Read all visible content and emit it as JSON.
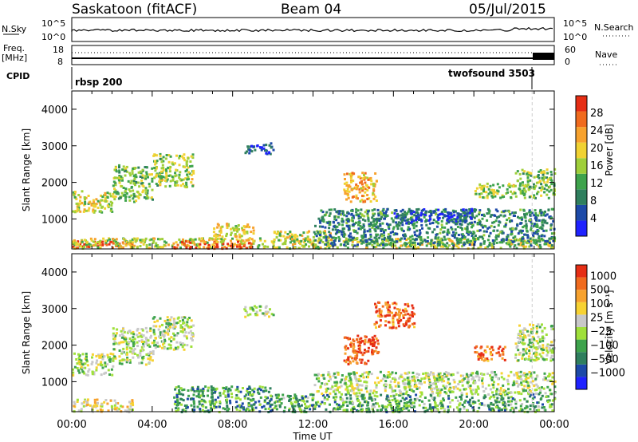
{
  "header": {
    "station": "Saskatoon (fitACF)",
    "beam": "Beam 04",
    "date": "05/Jul/2015"
  },
  "top_panels": {
    "nsky_label": "N.Sky",
    "nsky_ticks": [
      "10^5",
      "10^0"
    ],
    "nsearch_label": "N.Search",
    "freq_label_line1": "Freq.",
    "freq_label_line2": "[MHz]",
    "freq_ticks": [
      "18",
      "8"
    ],
    "nave_label": "Nave",
    "nave_ticks": [
      "60",
      "0"
    ],
    "cpid_label": "CPID",
    "cpid_programs": [
      {
        "name": "rbsp 200",
        "start_hour": 0,
        "end_hour": 22.8
      },
      {
        "name": "twofsound 3503",
        "start_hour": 22.8,
        "end_hour": 24
      }
    ]
  },
  "chart_data": [
    {
      "type": "heatmap",
      "panel": "power",
      "ylabel": "Slant Range [km]",
      "xlabel": "Time UT",
      "xlim_hours": [
        0,
        24
      ],
      "ylim_km": [
        180,
        4500
      ],
      "x_ticks": [
        "00:00",
        "04:00",
        "08:00",
        "12:00",
        "16:00",
        "20:00",
        "00:00"
      ],
      "y_ticks": [
        "1000",
        "2000",
        "3000",
        "4000"
      ],
      "colorbar": {
        "label": "Power [dB]",
        "ticks": [
          "4",
          "8",
          "12",
          "16",
          "20",
          "24",
          "28"
        ],
        "colors": [
          "#1f22ff",
          "#1d4aa8",
          "#2f7f5e",
          "#3ea34c",
          "#9fcf3a",
          "#f0d232",
          "#f7a22e",
          "#f06b1e",
          "#e62e15"
        ]
      },
      "echo_regions": [
        {
          "t0": 0,
          "t1": 3,
          "r0": 220,
          "r1": 420,
          "level": 0.95
        },
        {
          "t0": 0,
          "t1": 24,
          "r0": 220,
          "r1": 500,
          "level": 0.55
        },
        {
          "t0": 5,
          "t1": 9,
          "r0": 220,
          "r1": 420,
          "level": 0.9
        },
        {
          "t0": 0,
          "t1": 2,
          "r0": 1200,
          "r1": 1800,
          "level": 0.55
        },
        {
          "t0": 2,
          "t1": 4,
          "r0": 1500,
          "r1": 2500,
          "level": 0.45
        },
        {
          "t0": 4,
          "t1": 6,
          "r0": 1900,
          "r1": 2800,
          "level": 0.5
        },
        {
          "t0": 7,
          "t1": 9,
          "r0": 400,
          "r1": 900,
          "level": 0.6
        },
        {
          "t0": 8.5,
          "t1": 10,
          "r0": 2800,
          "r1": 3100,
          "level": 0.15
        },
        {
          "t0": 10,
          "t1": 13,
          "r0": 400,
          "r1": 700,
          "level": 0.55
        },
        {
          "t0": 13.5,
          "t1": 15.2,
          "r0": 1500,
          "r1": 2300,
          "level": 0.7
        },
        {
          "t0": 12,
          "t1": 24,
          "r0": 300,
          "r1": 1300,
          "level": 0.3
        },
        {
          "t0": 16,
          "t1": 20,
          "r0": 900,
          "r1": 1300,
          "level": 0.15
        },
        {
          "t0": 20,
          "t1": 22,
          "r0": 1600,
          "r1": 2000,
          "level": 0.5
        },
        {
          "t0": 22,
          "t1": 24,
          "r0": 1600,
          "r1": 2400,
          "level": 0.45
        }
      ]
    },
    {
      "type": "heatmap",
      "panel": "velocity",
      "ylabel": "Slant Range [km]",
      "xlabel": "Time UT",
      "xlim_hours": [
        0,
        24
      ],
      "ylim_km": [
        180,
        4500
      ],
      "x_ticks": [
        "00:00",
        "04:00",
        "08:00",
        "12:00",
        "16:00",
        "20:00",
        "00:00"
      ],
      "y_ticks": [
        "1000",
        "2000",
        "3000",
        "4000"
      ],
      "colorbar": {
        "label": "Velocity [m s⁻¹]",
        "ticks": [
          "1000",
          "500",
          "100",
          "25",
          "−25",
          "−100",
          "−500",
          "−1000"
        ],
        "colors": [
          "#1f22ff",
          "#1d4aa8",
          "#2f7f5e",
          "#3ea34c",
          "#9fe03a",
          "#c8c8c8",
          "#f7d232",
          "#f7a22e",
          "#f06b1e",
          "#e62e15"
        ]
      },
      "echo_regions": [
        {
          "t0": 0,
          "t1": 3,
          "r0": 200,
          "r1": 550,
          "level": 0.6
        },
        {
          "t0": 0,
          "t1": 2,
          "r0": 1200,
          "r1": 1800,
          "level": 0.5
        },
        {
          "t0": 2,
          "t1": 4,
          "r0": 1500,
          "r1": 2500,
          "level": 0.5
        },
        {
          "t0": 4,
          "t1": 6,
          "r0": 1900,
          "r1": 2800,
          "level": 0.5
        },
        {
          "t0": 5,
          "t1": 10,
          "r0": 200,
          "r1": 900,
          "level": 0.3
        },
        {
          "t0": 8.5,
          "t1": 10,
          "r0": 2800,
          "r1": 3100,
          "level": 0.5
        },
        {
          "t0": 10,
          "t1": 24,
          "r0": 200,
          "r1": 700,
          "level": 0.35
        },
        {
          "t0": 13.5,
          "t1": 15.2,
          "r0": 1500,
          "r1": 2300,
          "level": 0.9
        },
        {
          "t0": 15,
          "t1": 17,
          "r0": 2500,
          "r1": 3200,
          "level": 0.85
        },
        {
          "t0": 12,
          "t1": 24,
          "r0": 700,
          "r1": 1300,
          "level": 0.5
        },
        {
          "t0": 20,
          "t1": 21.5,
          "r0": 1600,
          "r1": 2000,
          "level": 0.85
        },
        {
          "t0": 22,
          "t1": 24,
          "r0": 1600,
          "r1": 2600,
          "level": 0.5
        }
      ]
    }
  ]
}
